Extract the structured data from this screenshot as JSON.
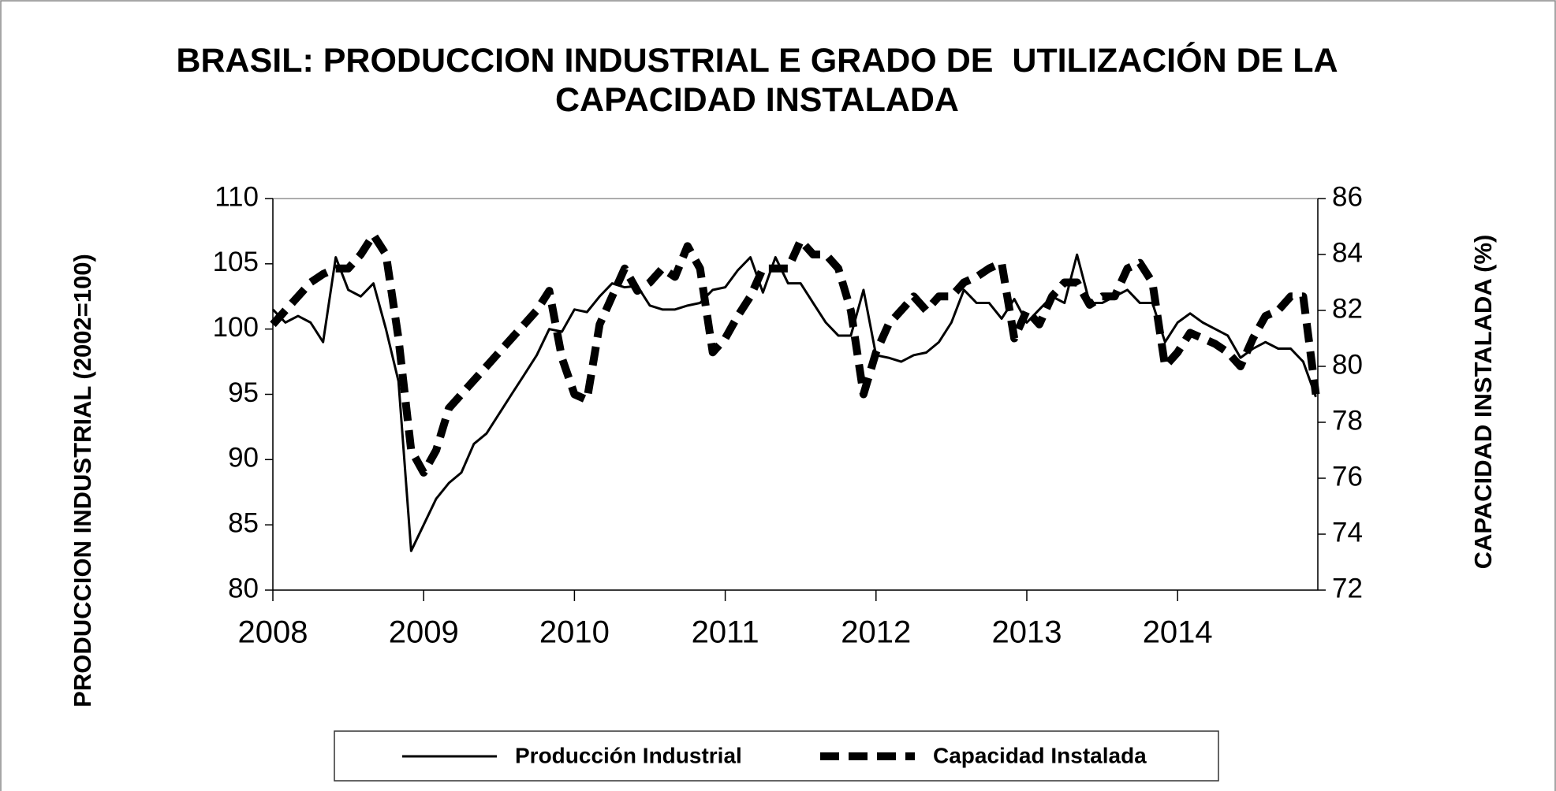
{
  "chart_data": {
    "type": "line",
    "title": "BRASIL: PRODUCCION INDUSTRIAL E GRADO DE  UTILIZACIÓN DE LA CAPACIDAD INSTALADA",
    "y_label": "PRODUCCION INDUSTRIAL  (2002=100)",
    "y2_label": "CAPACIDAD INSTALADA (%)",
    "x": [
      2008,
      2008.083,
      2008.167,
      2008.25,
      2008.333,
      2008.417,
      2008.5,
      2008.583,
      2008.667,
      2008.75,
      2008.833,
      2008.917,
      2009,
      2009.083,
      2009.167,
      2009.25,
      2009.333,
      2009.417,
      2009.5,
      2009.583,
      2009.667,
      2009.75,
      2009.833,
      2009.917,
      2010,
      2010.083,
      2010.167,
      2010.25,
      2010.333,
      2010.417,
      2010.5,
      2010.583,
      2010.667,
      2010.75,
      2010.833,
      2010.917,
      2011,
      2011.083,
      2011.167,
      2011.25,
      2011.333,
      2011.417,
      2011.5,
      2011.583,
      2011.667,
      2011.75,
      2011.833,
      2011.917,
      2012,
      2012.083,
      2012.167,
      2012.25,
      2012.333,
      2012.417,
      2012.5,
      2012.583,
      2012.667,
      2012.75,
      2012.833,
      2012.917,
      2013,
      2013.083,
      2013.167,
      2013.25,
      2013.333,
      2013.417,
      2013.5,
      2013.583,
      2013.667,
      2013.75,
      2013.833,
      2013.917,
      2014,
      2014.083,
      2014.167,
      2014.25,
      2014.333,
      2014.417,
      2014.5,
      2014.583,
      2014.667,
      2014.75,
      2014.833,
      2014.917
    ],
    "series": [
      {
        "name": "Producción Industrial",
        "color": "#000000",
        "style": "solid",
        "values": [
          101.5,
          100.5,
          101,
          100.5,
          99,
          105.5,
          103,
          102.5,
          103.5,
          100,
          96,
          83,
          85,
          87,
          88.2,
          89,
          91.2,
          92,
          93.5,
          95,
          96.5,
          98,
          100,
          99.8,
          101.5,
          101.3,
          102.5,
          103.5,
          103.2,
          103.3,
          101.8,
          101.5,
          101.5,
          101.8,
          102,
          103,
          103.2,
          104.5,
          105.5,
          102.8,
          105.5,
          103.5,
          103.5,
          102,
          100.5,
          99.5,
          99.5,
          103,
          98,
          97.8,
          97.5,
          98,
          98.2,
          99,
          100.5,
          103,
          102,
          102,
          100.8,
          102.3,
          100.5,
          101.5,
          102.5,
          102,
          105.7,
          102,
          102,
          102.5,
          103,
          102,
          102,
          99,
          100.5,
          101.2,
          100.5,
          100,
          99.5,
          97.8,
          98.5,
          99,
          98.5,
          98.5,
          97.5,
          94.8
        ]
      },
      {
        "name": "Capacidad Instalada",
        "color": "#000000",
        "style": "dashed",
        "axis": "y2",
        "values": [
          81.5,
          82,
          82.5,
          83,
          83.3,
          83.5,
          83.5,
          84,
          84.7,
          84,
          81,
          77,
          76.2,
          77,
          78.5,
          79,
          79.5,
          80,
          80.5,
          81,
          81.5,
          82,
          82.7,
          80.3,
          79,
          78.8,
          81.5,
          82.5,
          83.5,
          82.7,
          83,
          83.5,
          83.2,
          84.3,
          83.5,
          80.5,
          81,
          81.8,
          82.5,
          83.5,
          83.5,
          83.5,
          84.5,
          84,
          84,
          83.5,
          82,
          79,
          80.5,
          81.5,
          82,
          82.5,
          82,
          82.5,
          82.5,
          83,
          83.2,
          83.5,
          83.7,
          81,
          82,
          81.5,
          82.5,
          83,
          83,
          82.2,
          82.5,
          82.5,
          83.5,
          83.7,
          83,
          80,
          80.5,
          81.2,
          81,
          80.8,
          80.5,
          80,
          81,
          81.8,
          82,
          82.5,
          82.5,
          79
        ]
      }
    ],
    "xlim": [
      2008,
      2014.93
    ],
    "xticks": [
      2008,
      2009,
      2010,
      2011,
      2012,
      2013,
      2014
    ],
    "ylim": [
      80,
      110
    ],
    "yticks": [
      80,
      85,
      90,
      95,
      100,
      105,
      110
    ],
    "y2lim": [
      72,
      86
    ],
    "y2ticks": [
      72,
      74,
      76,
      78,
      80,
      82,
      84,
      86
    ],
    "grid": false,
    "legend": "bottom"
  }
}
